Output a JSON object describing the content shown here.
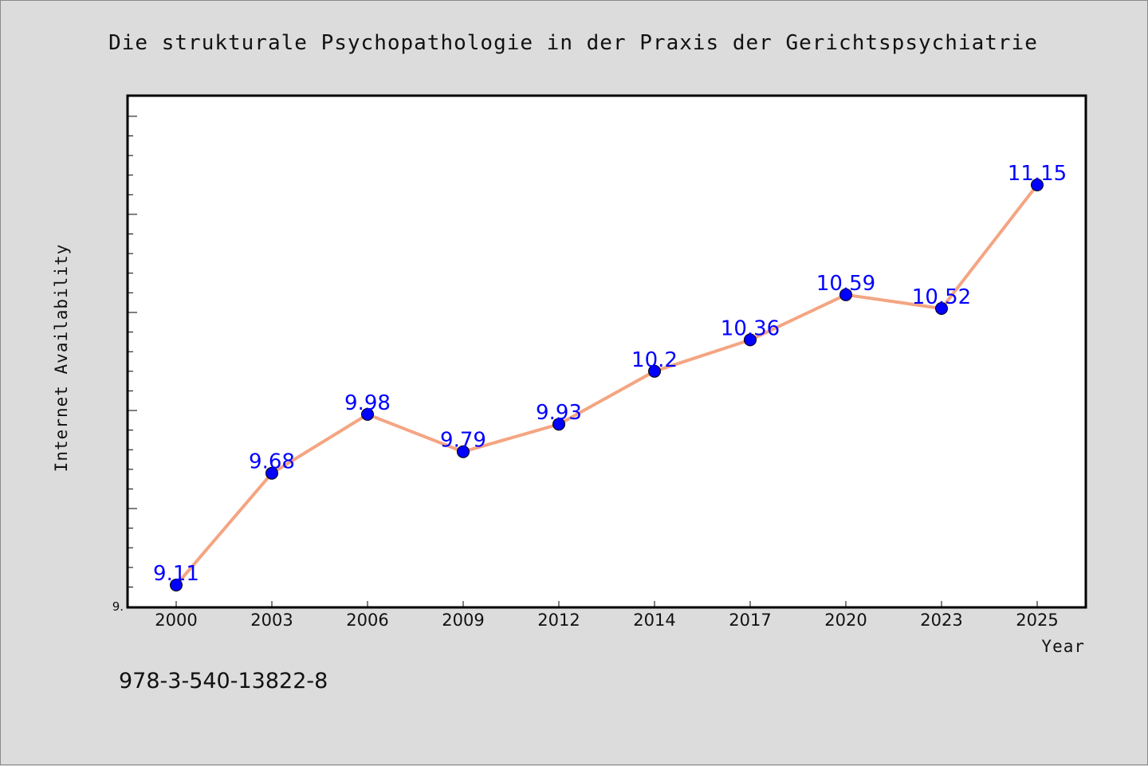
{
  "footer": {
    "note": "978-3-540-13822-8"
  },
  "chart_data": {
    "type": "line",
    "title": "Die strukturale Psychopathologie in der Praxis der Gerichtspsychiatrie",
    "xlabel": "Year",
    "ylabel": "Internet Availability",
    "categories": [
      "2000",
      "2003",
      "2006",
      "2009",
      "2012",
      "2014",
      "2017",
      "2020",
      "2023",
      "2025"
    ],
    "series": [
      {
        "values": [
          9.11,
          9.68,
          9.98,
          9.79,
          9.93,
          10.2,
          10.36,
          10.59,
          10.52,
          11.15
        ]
      }
    ],
    "data_labels": [
      "9.11",
      "9.68",
      "9.98",
      "9.79",
      "9.93",
      "10.2",
      "10.36",
      "10.59",
      "10.52",
      "11.15"
    ],
    "y_tick_labels": [
      {
        "value": 9.0,
        "label": "9."
      }
    ],
    "ylim": [
      9.0,
      11.6
    ],
    "grid": false,
    "colors": {
      "line": "#f4a582",
      "marker": "#0000ff",
      "data_label": "#0000ff",
      "plot_background": "#ffffff",
      "figure_background": "#dcdcdc"
    }
  }
}
